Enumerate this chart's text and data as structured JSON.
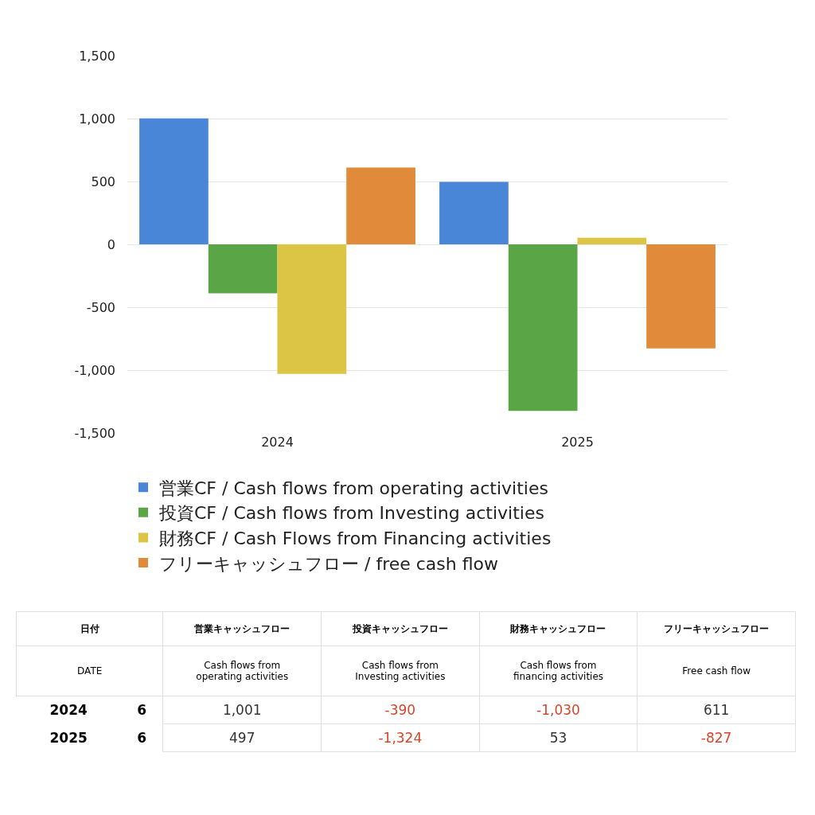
{
  "chart_data": {
    "type": "bar",
    "categories": [
      "2024",
      "2025"
    ],
    "series": [
      {
        "name": "営業CF / Cash flows from operating activities",
        "color": "#4a86d8",
        "values": [
          1001,
          497
        ]
      },
      {
        "name": "投資CF / Cash flows from Investing activities",
        "color": "#5aa646",
        "values": [
          -390,
          -1324
        ]
      },
      {
        "name": "財務CF / Cash Flows from Financing activities",
        "color": "#dcc444",
        "values": [
          -1030,
          53
        ]
      },
      {
        "name": "フリーキャッシュフロー / free cash flow",
        "color": "#e08a3a",
        "values": [
          611,
          -827
        ]
      }
    ],
    "ylim": [
      -1500,
      1500
    ],
    "yticks": [
      {
        "value": -1500,
        "label": "-1,500"
      },
      {
        "value": -1000,
        "label": "-1,000"
      },
      -500,
      0,
      500,
      {
        "value": 1000,
        "label": "1,000"
      },
      {
        "value": 1500,
        "label": "1,500"
      }
    ],
    "grid": "y",
    "legend": "bottom",
    "annotations": [
      "日付",
      "DATE",
      "営業キャッシュフロー",
      "Cash flows from operating activities",
      "投資キャッシュフロー",
      "Cash flows from Investing activities",
      "財務キャッシュフロー",
      "Cash flows from financing activities",
      "フリーキャッシュフロー",
      "Free cash flow",
      "6",
      "6",
      "1,001",
      "-390",
      "-1,030",
      "611",
      "497",
      "-1,324",
      "53",
      "-827"
    ]
  }
}
